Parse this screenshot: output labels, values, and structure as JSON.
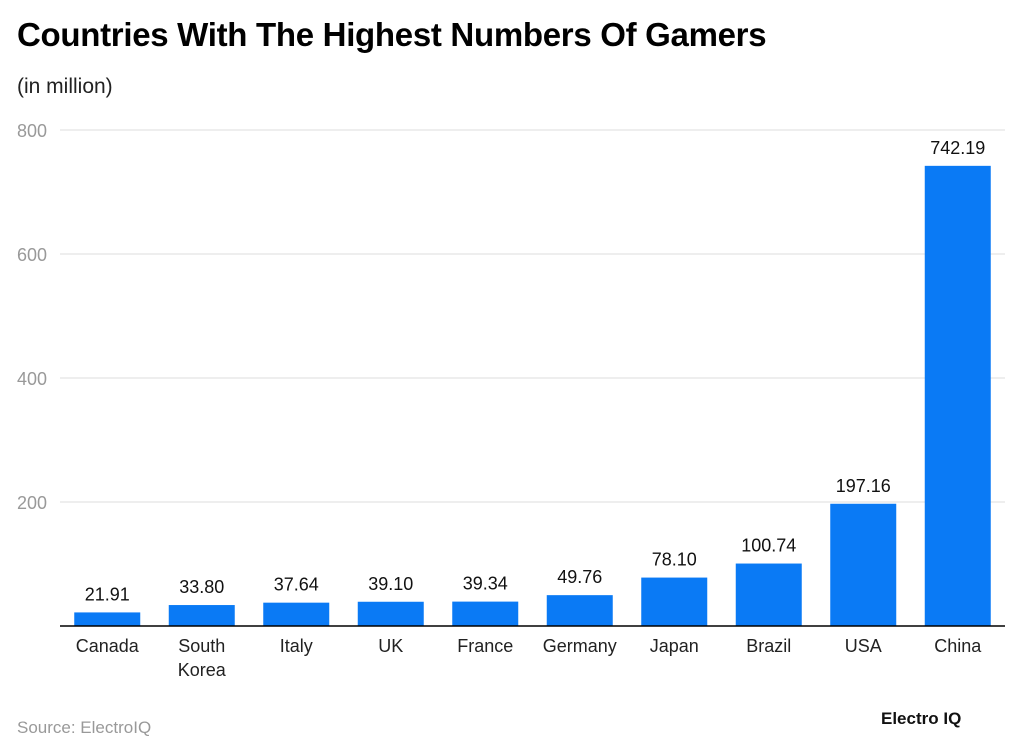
{
  "title": "Countries With The Highest Numbers Of Gamers",
  "subtitle": "(in million)",
  "source": "Source: ElectroIQ",
  "logo": "Electro IQ",
  "colors": {
    "bar": "#0a7af5",
    "grid": "#dddddd",
    "axis": "#000000"
  },
  "chart_data": {
    "type": "bar",
    "title": "Countries With The Highest Numbers Of Gamers",
    "subtitle": "(in million)",
    "categories": [
      "Canada",
      "South Korea",
      "Italy",
      "UK",
      "France",
      "Germany",
      "Japan",
      "Brazil",
      "USA",
      "China"
    ],
    "values": [
      21.91,
      33.8,
      37.64,
      39.1,
      39.34,
      49.76,
      78.1,
      100.74,
      197.16,
      742.19
    ],
    "labels": [
      "21.91",
      "33.80",
      "37.64",
      "39.10",
      "39.34",
      "49.76",
      "78.10",
      "100.74",
      "197.16",
      "742.19"
    ],
    "yticks": [
      200,
      400,
      600,
      800
    ],
    "ylim": [
      0,
      800
    ],
    "grid": true,
    "legend": "none"
  }
}
